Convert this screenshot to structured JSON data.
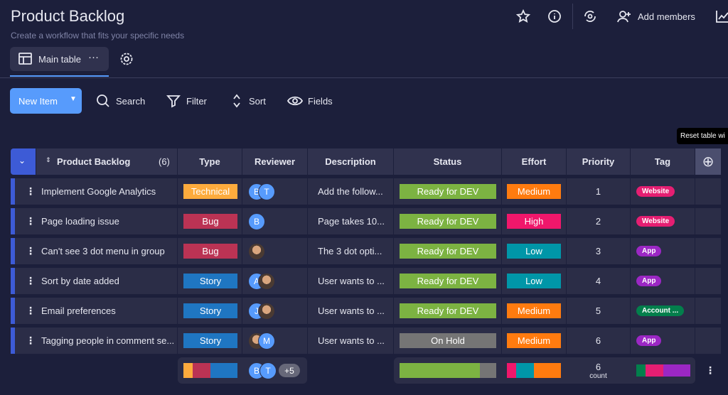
{
  "header": {
    "title": "Product Backlog",
    "subtitle": "Create a workflow that fits your specific needs",
    "add_members": "Add members"
  },
  "tabs": [
    {
      "label": "Main table"
    }
  ],
  "toolbar": {
    "new_item": "New Item",
    "search": "Search",
    "filter": "Filter",
    "sort": "Sort",
    "fields": "Fields"
  },
  "tooltip": "Reset table wi",
  "table": {
    "group": "Product Backlog",
    "count": "(6)",
    "columns": [
      "Type",
      "Reviewer",
      "Description",
      "Status",
      "Effort",
      "Priority",
      "Tag"
    ],
    "rows": [
      {
        "name": "Implement Google Analytics",
        "type": "Technical",
        "reviewers": [
          "B",
          "T"
        ],
        "description": "Add the follow...",
        "status": "Ready for DEV",
        "effort": "Medium",
        "priority": 1,
        "tag": "Website"
      },
      {
        "name": "Page loading issue",
        "type": "Bug",
        "reviewers": [
          "B"
        ],
        "description": "Page takes 10...",
        "status": "Ready for DEV",
        "effort": "High",
        "priority": 2,
        "tag": "Website"
      },
      {
        "name": "Can't see 3 dot menu in group",
        "type": "Bug",
        "reviewers": [],
        "description": "The 3 dot opti...",
        "status": "Ready for DEV",
        "effort": "Low",
        "priority": 3,
        "tag": "App"
      },
      {
        "name": "Sort by date added",
        "type": "Story",
        "reviewers": [
          "A"
        ],
        "description": "User wants to ...",
        "status": "Ready for DEV",
        "effort": "Low",
        "priority": 4,
        "tag": "App"
      },
      {
        "name": "Email preferences",
        "type": "Story",
        "reviewers": [
          "J"
        ],
        "description": "User wants to ...",
        "status": "Ready for DEV",
        "effort": "Medium",
        "priority": 5,
        "tag": "Account ..."
      },
      {
        "name": "Tagging people in comment se...",
        "type": "Story",
        "reviewers": [
          "M"
        ],
        "description": "User wants to ...",
        "status": "On Hold",
        "effort": "Medium",
        "priority": 6,
        "tag": "App"
      }
    ],
    "footer": {
      "reviewers": [
        "B",
        "T"
      ],
      "more": "+5",
      "count": 6,
      "count_label": "count"
    }
  }
}
